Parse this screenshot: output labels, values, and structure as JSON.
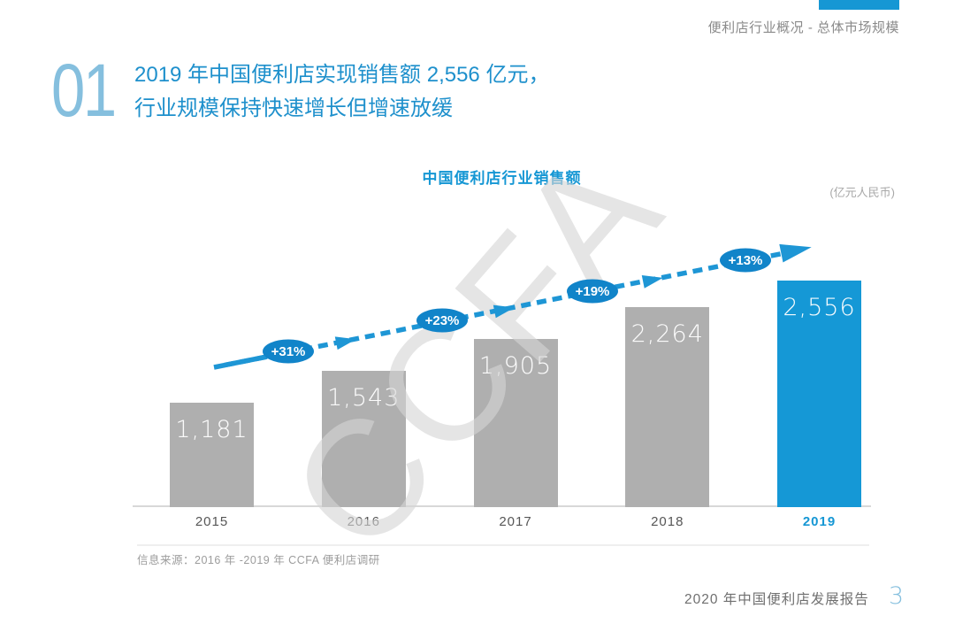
{
  "header": {
    "section_label": "便利店行业概况 - 总体市场规模"
  },
  "section": {
    "number": "01",
    "title_line1": "2019 年中国便利店实现销售额 2,556 亿元，",
    "title_line2": "行业规模保持快速增长但增速放缓"
  },
  "chart": {
    "title": "中国便利店行业销售额",
    "unit": "(亿元人民币)",
    "watermark": "CCFA",
    "source": "信息来源：2016 年 -2019 年 CCFA 便利店调研"
  },
  "chart_data": {
    "type": "bar",
    "title": "中国便利店行业销售额",
    "unit": "亿元人民币",
    "categories": [
      "2015",
      "2016",
      "2017",
      "2018",
      "2019"
    ],
    "values": [
      1181,
      1543,
      1905,
      2264,
      2556
    ],
    "value_labels": [
      "1,181",
      "1,543",
      "1,905",
      "2,264",
      "2,556"
    ],
    "growth_labels": [
      "+31%",
      "+23%",
      "+19%",
      "+13%"
    ],
    "highlight_index": 4,
    "ylim": [
      0,
      3430
    ],
    "grid": false,
    "legend": false,
    "annotation": "dashed upward growth arrow with percentage badges between consecutive bars"
  },
  "footer": {
    "report_title": "2020 年中国便利店发展报告",
    "page_number": "3"
  },
  "colors": {
    "accent_blue": "#1697D4",
    "title_blue": "#1E90CC",
    "light_blue": "#85BFDE",
    "badge_blue": "#1184C9",
    "arrow_blue": "#1E96D5",
    "bar_gray": "#AFAFAF",
    "bar_blue": "#1598D6"
  }
}
